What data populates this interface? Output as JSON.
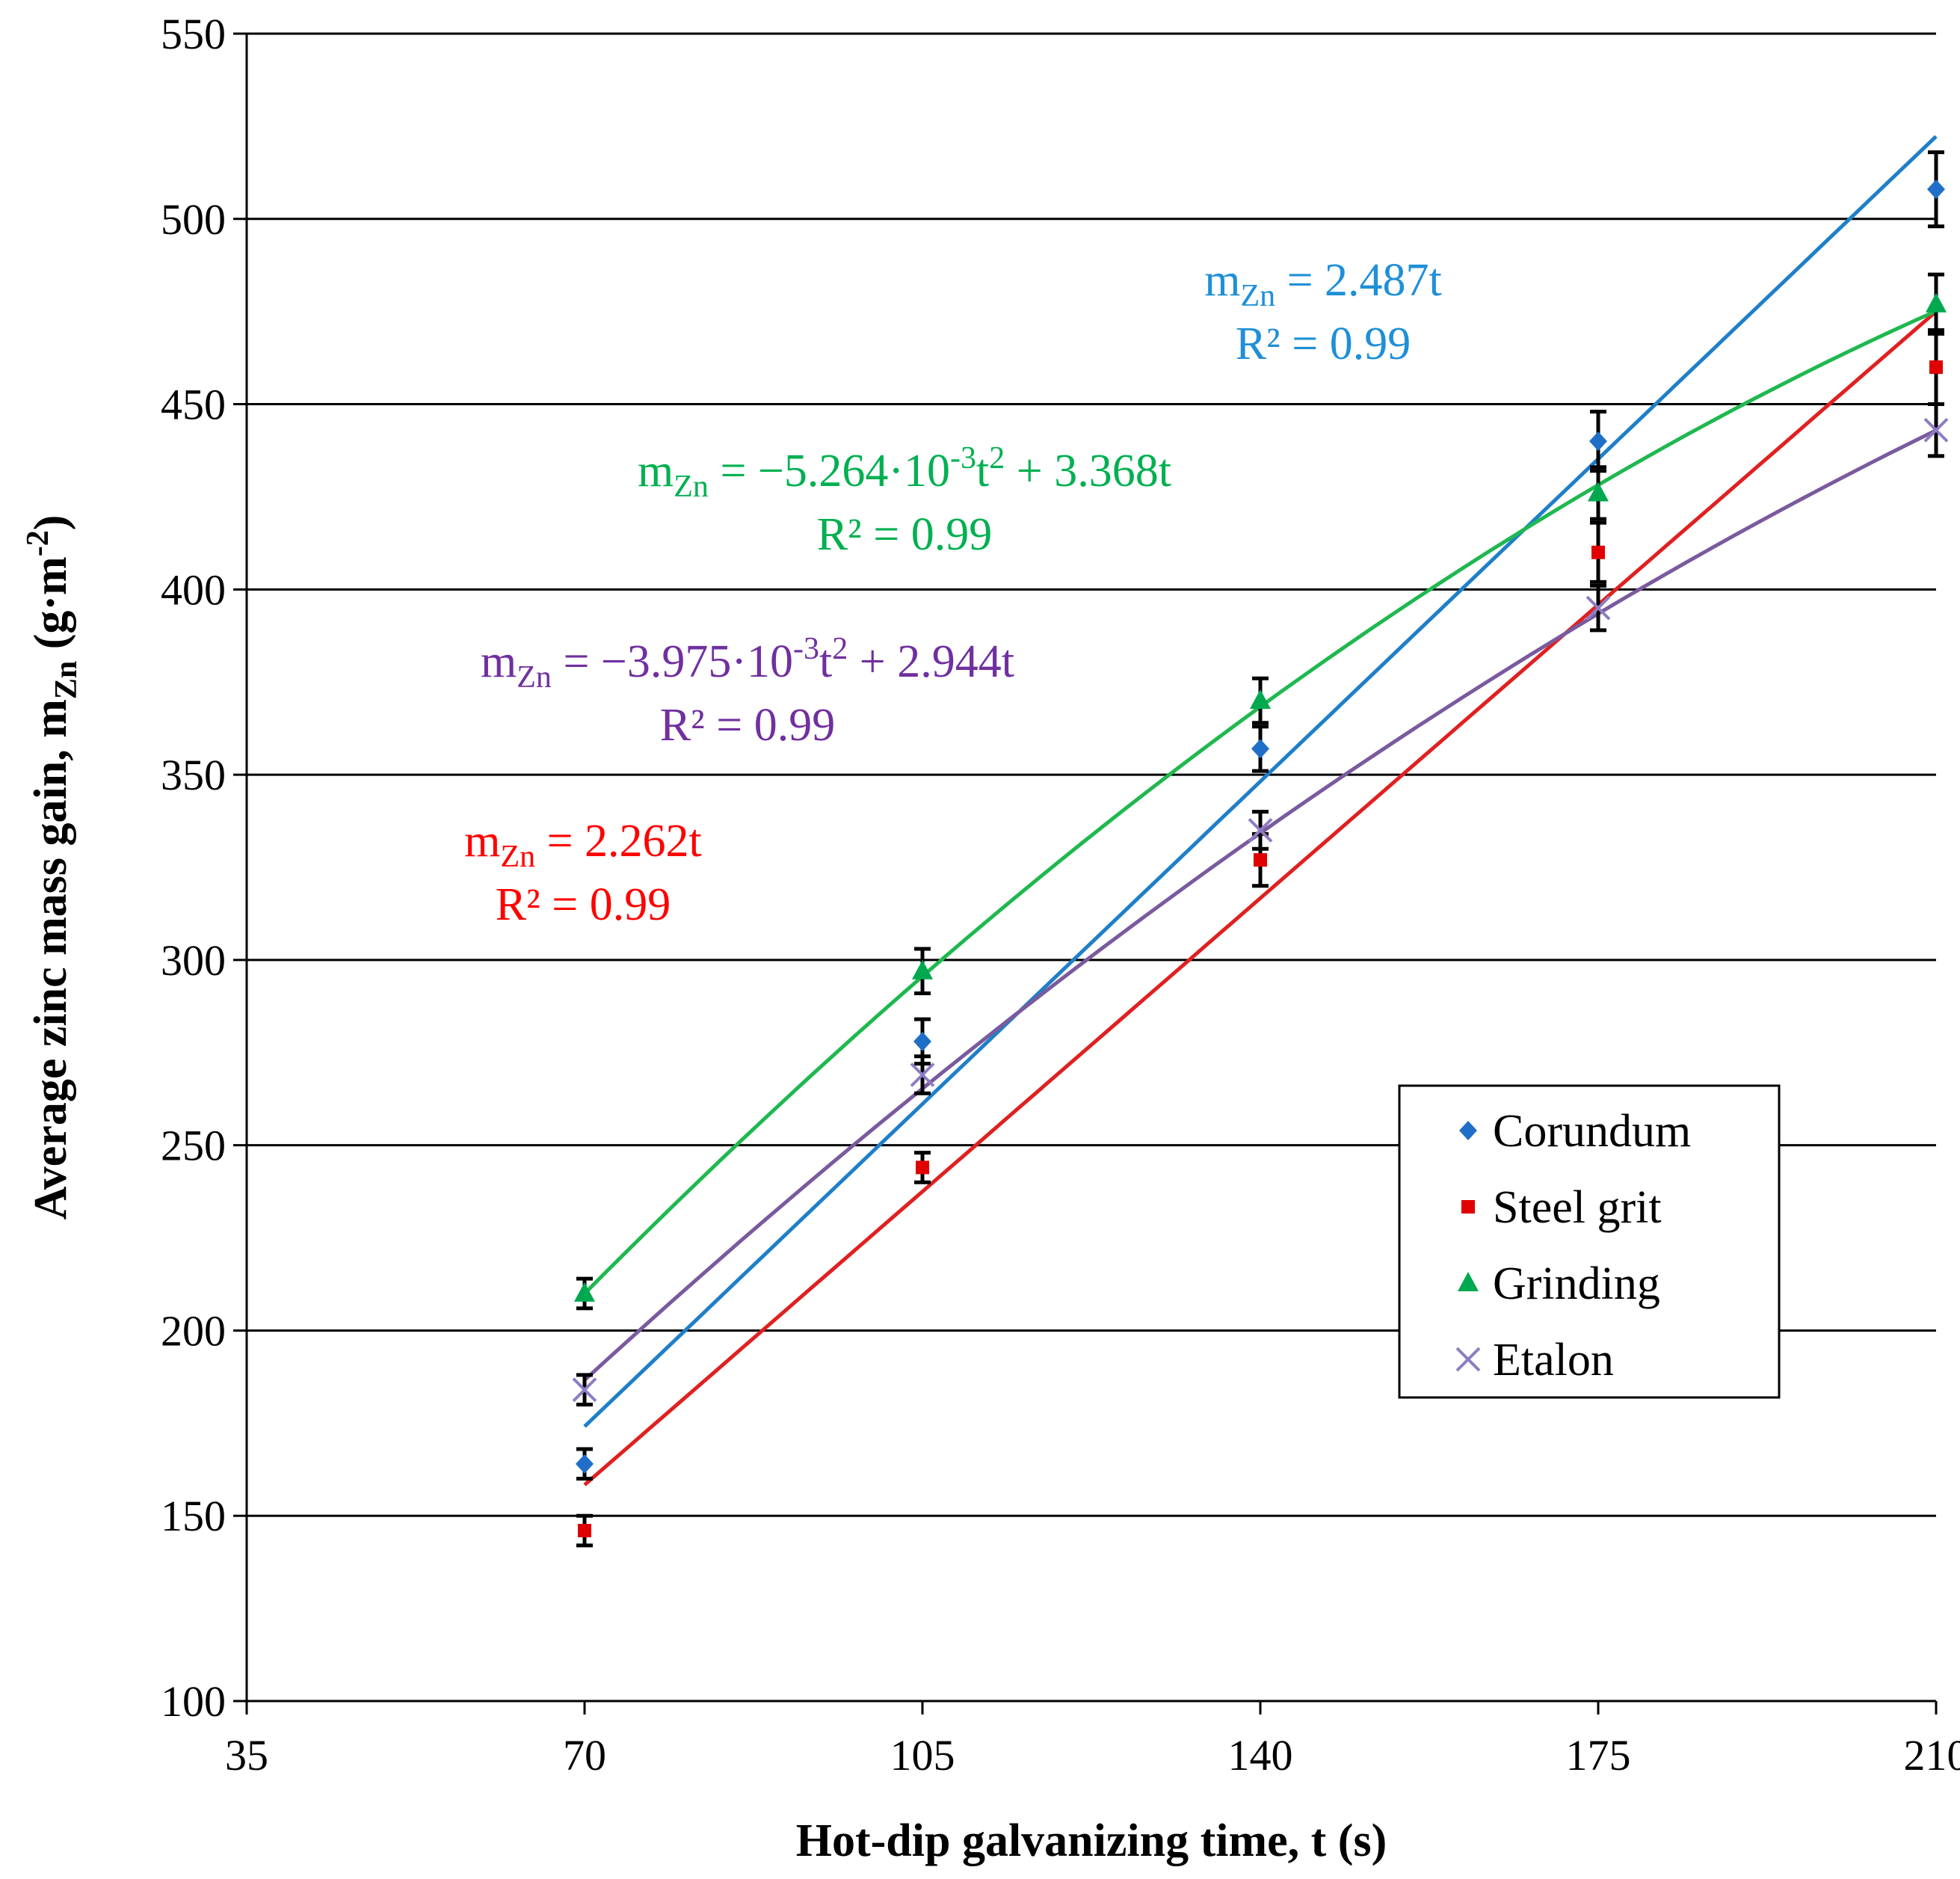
{
  "chart_data": {
    "type": "scatter",
    "xlabel": "Hot-dip galvanizing time, t (s)",
    "ylabel": {
      "main": "Average zinc mass gain, m",
      "sub": "Zn",
      "unit_open": " (g·m",
      "unit_sup": "-2",
      "unit_close": ")"
    },
    "xlim": [
      35,
      210
    ],
    "ylim": [
      100,
      550
    ],
    "xticks": [
      35,
      70,
      105,
      140,
      175,
      210
    ],
    "yticks": [
      100,
      150,
      200,
      250,
      300,
      350,
      400,
      450,
      500,
      550
    ],
    "x": [
      70,
      105,
      140,
      175,
      210
    ],
    "grid": "horizontal",
    "legend_position": "lower-right",
    "series": [
      {
        "name": "Corundum",
        "marker": "diamond",
        "color": "#1f6fc8",
        "values": [
          164,
          278,
          357,
          440,
          508
        ],
        "errors": [
          4,
          6,
          6,
          8,
          10
        ],
        "fit": {
          "type": "linear",
          "a": 2.487,
          "color": "#1f7fc8",
          "lines": [
            [
              "m",
              "Zn",
              " = 2.487t"
            ],
            [
              "R² = 0.99"
            ]
          ],
          "text_color": "#1f8fd8"
        }
      },
      {
        "name": "Steel grit",
        "marker": "square",
        "color": "#e00000",
        "values": [
          146,
          244,
          327,
          410,
          460
        ],
        "errors": [
          4,
          4,
          7,
          8,
          10
        ],
        "fit": {
          "type": "linear",
          "a": 2.262,
          "color": "#e02020",
          "lines": [
            [
              "m",
              "Zn",
              " = 2.262t"
            ],
            [
              "R² = 0.99"
            ]
          ],
          "text_color": "#ff0000"
        }
      },
      {
        "name": "Grinding",
        "marker": "triangle",
        "color": "#00a84f",
        "values": [
          210,
          297,
          370,
          426,
          477
        ],
        "errors": [
          4,
          6,
          6,
          7,
          8
        ],
        "fit": {
          "type": "quadratic",
          "a": -0.005264,
          "b": 3.368,
          "color": "#1fb84f",
          "lines": [
            [
              "m",
              "Zn",
              " = −5.264·10",
              "-3",
              "t",
              "2",
              " + 3.368t"
            ],
            [
              "R² = 0.99"
            ]
          ],
          "text_color": "#00b050"
        }
      },
      {
        "name": "Etalon",
        "marker": "x",
        "color": "#8e7cc3",
        "values": [
          184,
          269,
          335,
          395,
          443
        ],
        "errors": [
          4,
          5,
          5,
          6,
          7
        ],
        "fit": {
          "type": "quadratic",
          "a": -0.003975,
          "b": 2.944,
          "color": "#7a5a9e",
          "lines": [
            [
              "m",
              "Zn",
              " = −3.975·10",
              "-3",
              "t",
              "2",
              " + 2.944t"
            ],
            [
              "R² = 0.99"
            ]
          ],
          "text_color": "#7030a0"
        }
      }
    ]
  }
}
